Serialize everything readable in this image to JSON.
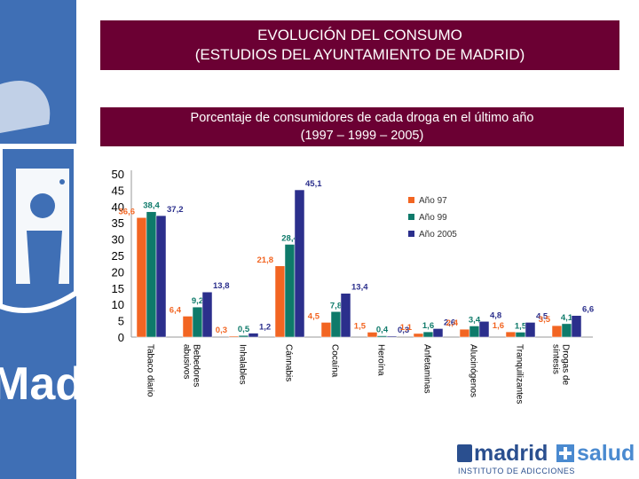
{
  "header": {
    "title_line1": "EVOLUCIÓN DEL CONSUMO",
    "title_line2": "(ESTUDIOS DEL AYUNTAMIENTO DE MADRID)"
  },
  "subheader": {
    "line1": "Porcentaje de consumidores de cada droga en el último año",
    "line2": "(1997 – 1999 – 2005)"
  },
  "sidebar": {
    "logo_text": "Madrid"
  },
  "footer": {
    "logo_word1": "madrid",
    "logo_word2": "salud",
    "logo_sub": "INSTITUTO DE ADICCIONES"
  },
  "colors": {
    "title_bg": "#6b0033",
    "sidebar_bg": "#3f6fb5",
    "series_97": "#f26522",
    "series_99": "#0e7a6a",
    "series_2005": "#2b2f8c"
  },
  "chart_data": {
    "type": "bar",
    "categories": [
      "Tabaco diario",
      "Bebedores abusivos",
      "Inhalables",
      "Cánnabis",
      "Cocaína",
      "Heroína",
      "Anfetaminas",
      "Alucinógenos",
      "Tranquilizantes",
      "Drogas de síntesis"
    ],
    "series": [
      {
        "name": "Año 97",
        "color": "#f26522",
        "values": [
          36.6,
          6.4,
          0.3,
          21.8,
          4.5,
          1.5,
          1.1,
          2.4,
          1.6,
          3.5
        ],
        "labels": [
          "36,6",
          "6,4",
          "0,3",
          "21,8",
          "4,5",
          "1,5",
          "1,1",
          "2,4",
          "1,6",
          "3,5"
        ]
      },
      {
        "name": "Año 99",
        "color": "#0e7a6a",
        "values": [
          38.4,
          9.2,
          0.5,
          28.4,
          7.8,
          0.4,
          1.6,
          3.4,
          1.5,
          4.1
        ],
        "labels": [
          "38,4",
          "9,2",
          "0,5",
          "28,4",
          "7,8",
          "0,4",
          "1,6",
          "3,4",
          "1,5",
          "4,1"
        ]
      },
      {
        "name": "Año 2005",
        "color": "#2b2f8c",
        "values": [
          37.2,
          13.8,
          1.2,
          45.1,
          13.4,
          0.3,
          2.6,
          4.8,
          4.5,
          6.6
        ],
        "labels": [
          "37,2",
          "13,8",
          "1,2",
          "45,1",
          "13,4",
          "0,3",
          "2,6",
          "4,8",
          "4,5",
          "6,6"
        ]
      }
    ],
    "yticks": [
      "0",
      "5",
      "10",
      "15",
      "20",
      "25",
      "30",
      "35",
      "40",
      "45",
      "50"
    ],
    "ylim": [
      0,
      50
    ],
    "grid": false,
    "legend_position": "top-right"
  }
}
